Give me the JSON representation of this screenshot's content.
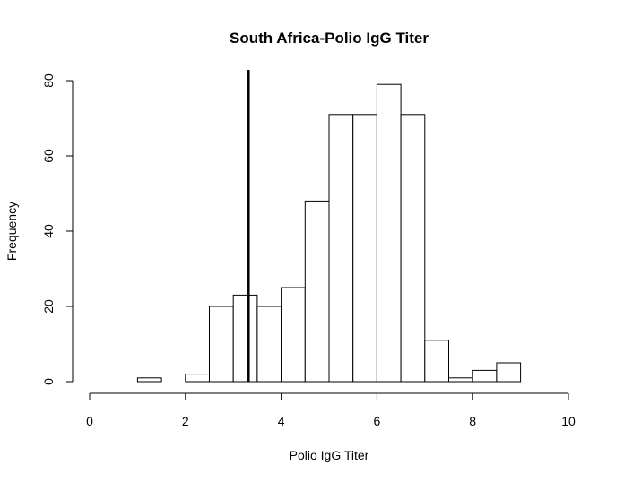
{
  "chart_data": {
    "type": "bar",
    "title": "South Africa-Polio IgG Titer",
    "xlabel": "Polio IgG Titer",
    "ylabel": "Frequency",
    "xlim": [
      0,
      10
    ],
    "ylim": [
      0,
      80
    ],
    "x_ticks": [
      "0",
      "2",
      "4",
      "6",
      "8",
      "10"
    ],
    "y_ticks": [
      "0",
      "20",
      "40",
      "60",
      "80"
    ],
    "bin_width": 0.5,
    "bins": [
      {
        "x0": 1.0,
        "count": 1
      },
      {
        "x0": 1.5,
        "count": 0
      },
      {
        "x0": 2.0,
        "count": 2
      },
      {
        "x0": 2.5,
        "count": 20
      },
      {
        "x0": 3.0,
        "count": 23
      },
      {
        "x0": 3.5,
        "count": 20
      },
      {
        "x0": 4.0,
        "count": 25
      },
      {
        "x0": 4.5,
        "count": 48
      },
      {
        "x0": 5.0,
        "count": 71
      },
      {
        "x0": 5.5,
        "count": 71
      },
      {
        "x0": 6.0,
        "count": 79
      },
      {
        "x0": 6.5,
        "count": 71
      },
      {
        "x0": 7.0,
        "count": 11
      },
      {
        "x0": 7.5,
        "count": 1
      },
      {
        "x0": 8.0,
        "count": 3
      },
      {
        "x0": 8.5,
        "count": 5
      }
    ],
    "reference_line_x": 3.32,
    "grid": false,
    "legend": "none"
  }
}
